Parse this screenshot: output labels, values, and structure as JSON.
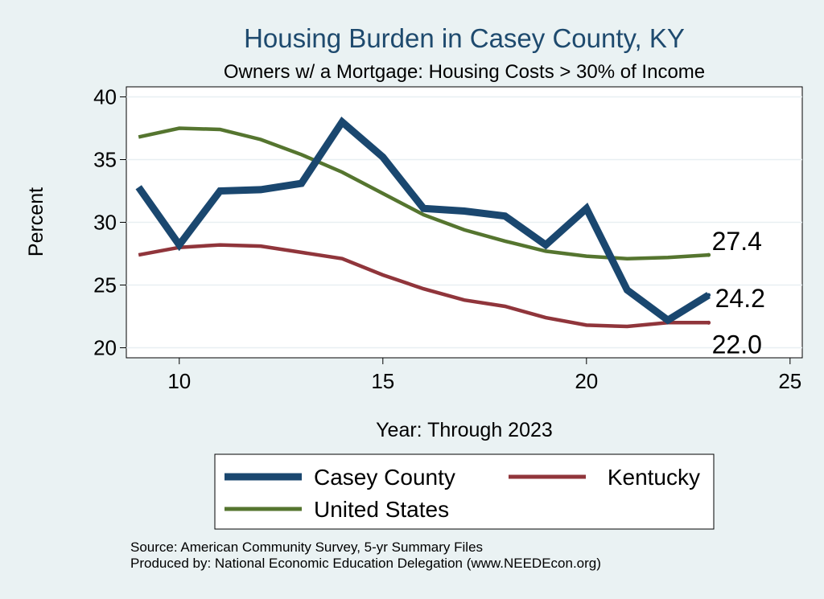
{
  "chart_data": {
    "type": "line",
    "title": "Housing Burden in Casey County, KY",
    "subtitle": "Owners w/ a Mortgage: Housing Costs > 30% of Income",
    "xlabel": "Year: Through 2023",
    "ylabel": "Percent",
    "xlim": [
      8.7,
      25.3
    ],
    "ylim": [
      19.2,
      40.8
    ],
    "xticks": [
      10,
      15,
      20,
      25
    ],
    "yticks": [
      20,
      25,
      30,
      35,
      40
    ],
    "grid": true,
    "legend_position": "bottom",
    "x": [
      9,
      10,
      11,
      12,
      13,
      14,
      15,
      16,
      17,
      18,
      19,
      20,
      21,
      22,
      23
    ],
    "series": [
      {
        "name": "Casey County",
        "color": "#1a476f",
        "values": [
          32.8,
          28.2,
          32.5,
          32.6,
          33.1,
          38.0,
          35.2,
          31.1,
          30.9,
          30.5,
          28.2,
          31.1,
          24.6,
          22.2,
          24.2
        ],
        "end_label": "24.2"
      },
      {
        "name": "Kentucky",
        "color": "#90353b",
        "values": [
          27.4,
          28.0,
          28.2,
          28.1,
          27.6,
          27.1,
          25.8,
          24.7,
          23.8,
          23.3,
          22.4,
          21.8,
          21.7,
          22.0,
          22.0
        ],
        "end_label": "22.0"
      },
      {
        "name": "United States",
        "color": "#55752f",
        "values": [
          36.8,
          37.5,
          37.4,
          36.6,
          35.4,
          34.0,
          32.3,
          30.6,
          29.4,
          28.5,
          27.7,
          27.3,
          27.1,
          27.2,
          27.4
        ],
        "end_label": "27.4"
      }
    ]
  },
  "notes": {
    "source": "Source: American Community Survey, 5-yr Summary Files",
    "produced_by": "Produced by: National Economic Education Delegation (www.NEEDEcon.org)"
  }
}
